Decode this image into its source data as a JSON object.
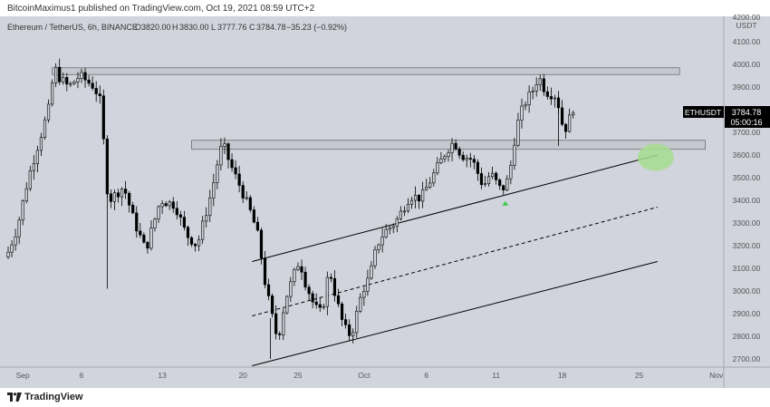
{
  "header": {
    "publish_text": "BitcoinMaximus1 published on TradingView.com, Oct 19, 2021 08:59 UTC+2"
  },
  "legend": {
    "symbol": "Ethereum / TetherUS, 6h, BINANCE",
    "o_label": "O",
    "o_value": "3820.00",
    "h_label": "H",
    "h_value": "3830.00",
    "l_label": "L",
    "l_value": "3777.76",
    "c_label": "C",
    "c_value": "3784.78",
    "change": "−35.23 (−0.92%)"
  },
  "price_tag": {
    "ticker": "ETHUSDT",
    "price": "3784.78",
    "countdown": "05:00:16"
  },
  "axis": {
    "currency": "USDT",
    "y_ticks": [
      "4200.00",
      "4100.00",
      "4000.00",
      "3900.00",
      "3800.00",
      "3700.00",
      "3600.00",
      "3500.00",
      "3400.00",
      "3300.00",
      "3200.00",
      "3100.00",
      "3000.00",
      "2900.00",
      "2800.00",
      "2700.00"
    ],
    "x_ticks": [
      "Sep",
      "6",
      "13",
      "20",
      "25",
      "Oct",
      "6",
      "11",
      "18",
      "25",
      "Nov"
    ]
  },
  "footer": {
    "logo_text": "TradingView"
  },
  "colors": {
    "plot_bg": "#d1d4dc",
    "candle": "#000000",
    "zone_fill": "#c3c5cb",
    "zone_border": "#6c6e73",
    "green_marker": "#3cc94a",
    "green_ellipse": "#a6dd8f",
    "price_tag_bg": "#000000"
  },
  "chart_data": {
    "type": "candlestick",
    "title": "Ethereum / TetherUS, 6h, BINANCE",
    "ylabel": "USDT",
    "ylim": [
      2650,
      4220
    ],
    "x_labels": [
      "Sep",
      "6",
      "13",
      "20",
      "25",
      "Oct",
      "6",
      "11",
      "18",
      "25",
      "Nov"
    ],
    "anchors": [
      [
        0,
        3150
      ],
      [
        3,
        3280
      ],
      [
        6,
        3500
      ],
      [
        10,
        3720
      ],
      [
        12,
        3830
      ],
      [
        13,
        4000
      ],
      [
        14,
        3950
      ],
      [
        17,
        3900
      ],
      [
        20,
        3950
      ],
      [
        24,
        3900
      ],
      [
        26,
        3820
      ],
      [
        27,
        3500
      ],
      [
        28,
        3400
      ],
      [
        32,
        3460
      ],
      [
        35,
        3300
      ],
      [
        38,
        3180
      ],
      [
        42,
        3400
      ],
      [
        46,
        3380
      ],
      [
        49,
        3250
      ],
      [
        52,
        3200
      ],
      [
        56,
        3440
      ],
      [
        58,
        3600
      ],
      [
        59,
        3650
      ],
      [
        61,
        3560
      ],
      [
        64,
        3450
      ],
      [
        67,
        3330
      ],
      [
        69,
        3220
      ],
      [
        70,
        3080
      ],
      [
        72,
        2920
      ],
      [
        74,
        2780
      ],
      [
        76,
        2960
      ],
      [
        79,
        3100
      ],
      [
        80,
        3140
      ],
      [
        81,
        3060
      ],
      [
        84,
        2930
      ],
      [
        86,
        2900
      ],
      [
        88,
        3100
      ],
      [
        90,
        2960
      ],
      [
        92,
        2840
      ],
      [
        94,
        2800
      ],
      [
        97,
        3000
      ],
      [
        99,
        3060
      ],
      [
        101,
        3200
      ],
      [
        103,
        3260
      ],
      [
        106,
        3300
      ],
      [
        110,
        3420
      ],
      [
        113,
        3410
      ],
      [
        116,
        3500
      ],
      [
        120,
        3620
      ],
      [
        122,
        3660
      ],
      [
        124,
        3600
      ],
      [
        127,
        3580
      ],
      [
        130,
        3460
      ],
      [
        132,
        3520
      ],
      [
        135,
        3440
      ],
      [
        137,
        3500
      ],
      [
        139,
        3720
      ],
      [
        141,
        3820
      ],
      [
        144,
        3900
      ],
      [
        145,
        3950
      ],
      [
        147,
        3880
      ],
      [
        150,
        3860
      ],
      [
        152,
        3700
      ],
      [
        154,
        3780
      ]
    ],
    "resistance_zones": [
      {
        "low": 3955,
        "high": 3985,
        "label": ""
      },
      {
        "low": 3625,
        "high": 3665,
        "label": ""
      }
    ],
    "trend_channel": {
      "upper": [
        [
          3,
          "Sep 21",
          3130
        ],
        [
          4,
          "Oct 26",
          3600
        ]
      ],
      "middle": [
        [
          3,
          "Sep 21",
          2890
        ],
        [
          4,
          "Oct 26",
          3370
        ]
      ],
      "lower": [
        [
          3,
          "Sep 21",
          2670
        ],
        [
          4,
          "Oct 26",
          3130
        ]
      ]
    },
    "bounce_marker": {
      "date": "Oct 13",
      "price": 3385
    },
    "target_ellipse": {
      "date": "Oct 26",
      "price": 3590
    },
    "last_price": 3784.78
  }
}
